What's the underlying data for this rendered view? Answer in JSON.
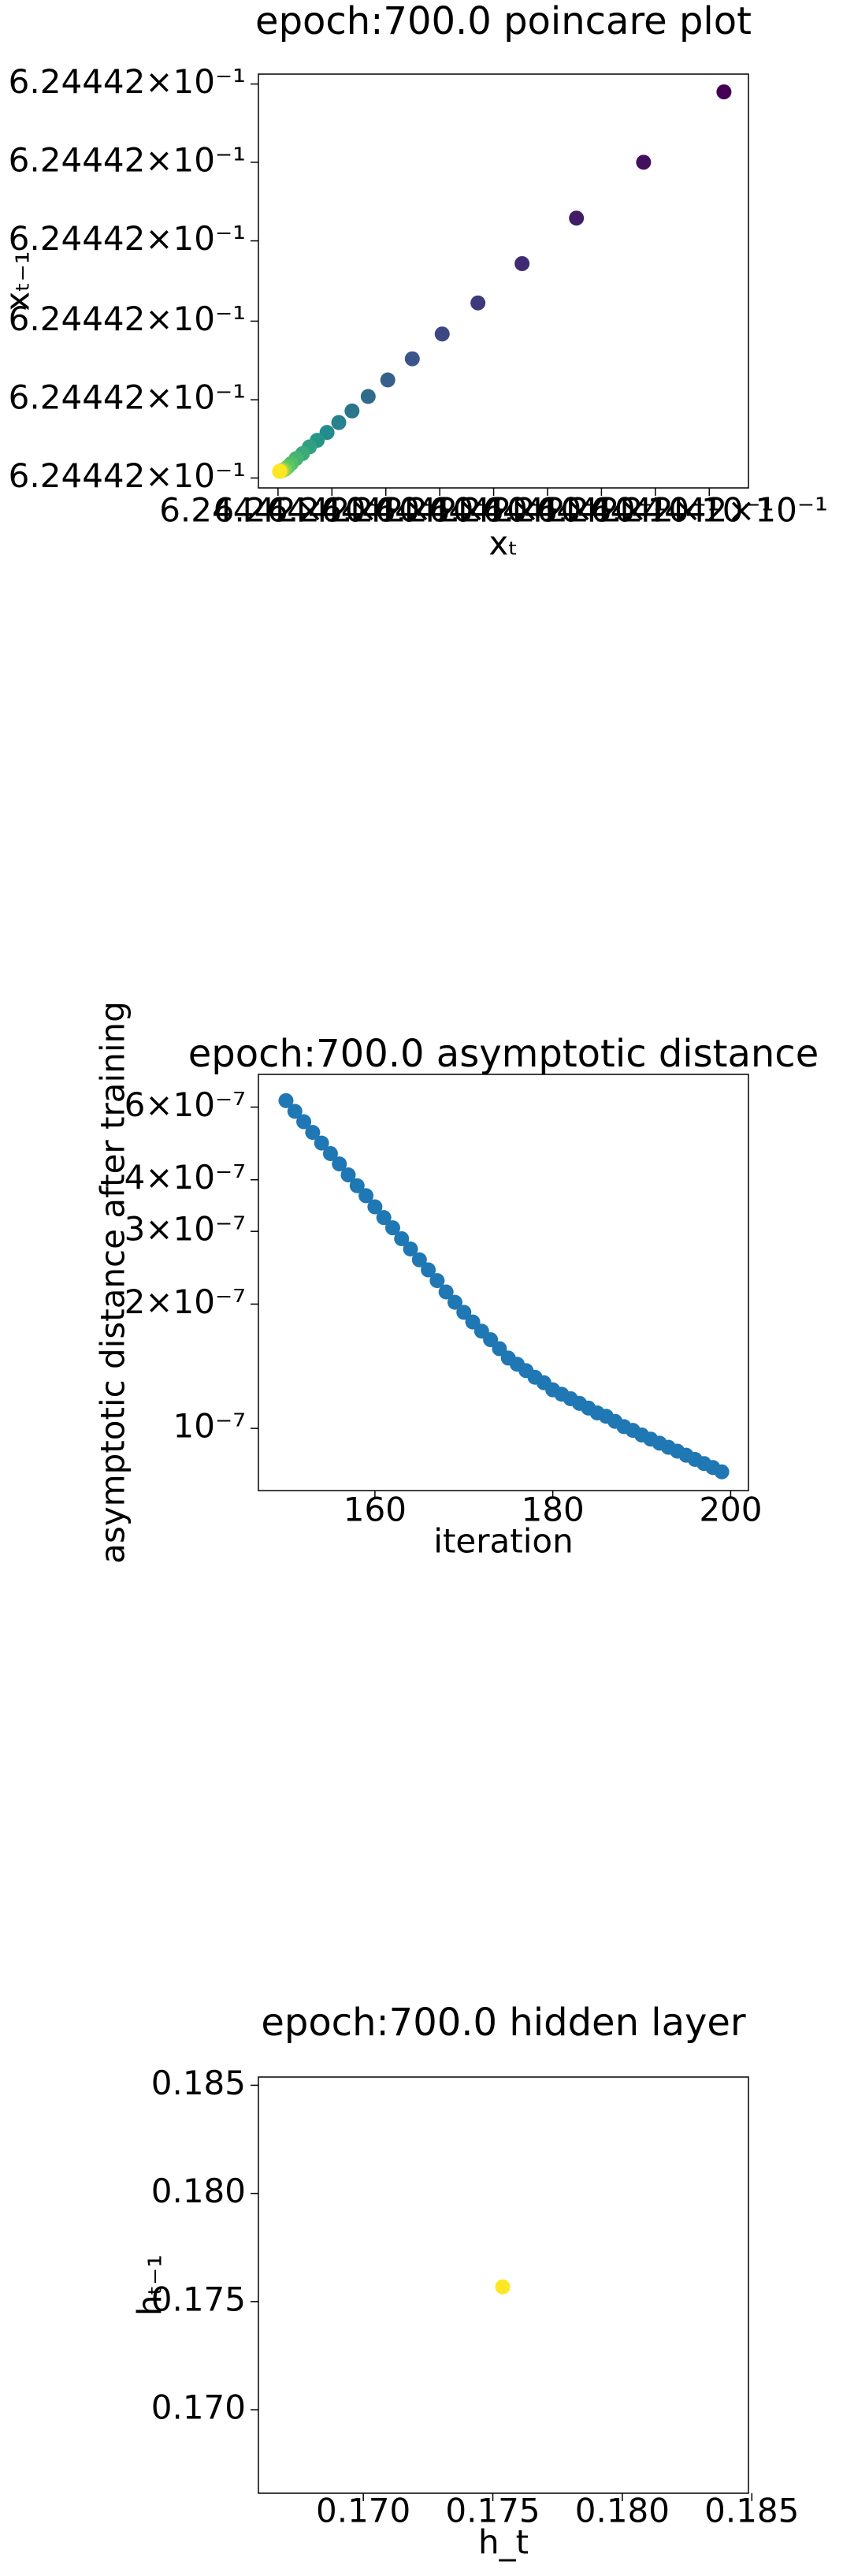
{
  "chart_data": [
    {
      "type": "scatter",
      "title": "epoch:700.0 poincare plot",
      "xlabel": "xₜ",
      "ylabel": "xₜ₋₁",
      "cmap": "viridis",
      "x": [
        0.624442095,
        0.6244420786,
        0.6244420649,
        0.6244420538,
        0.6244420448,
        0.6244420375,
        0.6244420314,
        0.6244420264,
        0.6244420224,
        0.6244420191,
        0.6244420164,
        0.624442014,
        0.624442012,
        0.6244420104,
        0.624442009,
        0.6244420077,
        0.6244420067,
        0.624442006,
        0.6244420054,
        0.624442005,
        0.6244420047,
        0.6244420045,
        0.6244420044,
        0.6244420043
      ],
      "values": [
        0.6244420957,
        0.6244420787,
        0.6244420652,
        0.6244420542,
        0.6244420447,
        0.6244420372,
        0.6244420312,
        0.6244420261,
        0.6244420221,
        0.6244420186,
        0.6244420158,
        0.6244420134,
        0.6244420115,
        0.6244420099,
        0.6244420083,
        0.6244420071,
        0.6244420059,
        0.6244420051,
        0.6244420045,
        0.6244420043,
        0.6244420042,
        0.6244420041,
        0.624442004,
        0.624442004
      ],
      "xlim": [
        0.624442,
        0.6244421
      ],
      "ylim": [
        0.624442,
        0.6244421
      ],
      "xticks": [
        {
          "value": 0.624442004,
          "label": "6.24442×10⁻¹"
        },
        {
          "value": 0.624442015,
          "label": "6.24442×10⁻¹"
        },
        {
          "value": 0.624442026,
          "label": "6.24442×10⁻¹"
        },
        {
          "value": 0.624442037,
          "label": "6.24442×10⁻¹"
        },
        {
          "value": 0.624442048,
          "label": "6.24442×10⁻¹"
        },
        {
          "value": 0.624442059,
          "label": "6.24442×10⁻¹"
        },
        {
          "value": 0.62444207,
          "label": "6.24442×10⁻¹"
        },
        {
          "value": 0.624442081,
          "label": "6.24442×10⁻¹"
        },
        {
          "value": 0.624442092,
          "label": "6.24442×10⁻¹"
        }
      ],
      "yticks": [
        {
          "value": 0.6244420024,
          "label": "6.24442×10⁻¹"
        },
        {
          "value": 0.6244420213,
          "label": "6.24442×10⁻¹"
        },
        {
          "value": 0.6244420403,
          "label": "6.24442×10⁻¹"
        },
        {
          "value": 0.6244420597,
          "label": "6.24442×10⁻¹"
        },
        {
          "value": 0.6244420787,
          "label": "6.24442×10⁻¹"
        },
        {
          "value": 0.6244420976,
          "label": "6.24442×10⁻¹"
        }
      ]
    },
    {
      "type": "scatter",
      "title": "epoch:700.0 asymptotic distance",
      "xlabel": "iteration",
      "ylabel": "asymptotic distance after training",
      "color": "#1f77b4",
      "ylog": true,
      "x": [
        150,
        151,
        152,
        153,
        154,
        155,
        156,
        157,
        158,
        159,
        160,
        161,
        162,
        163,
        164,
        165,
        166,
        167,
        168,
        169,
        170,
        171,
        172,
        173,
        174,
        175,
        176,
        177,
        178,
        179,
        180,
        181,
        182,
        183,
        184,
        185,
        186,
        187,
        188,
        189,
        190,
        191,
        192,
        193,
        194,
        195,
        196,
        197,
        198,
        199
      ],
      "values": [
        6.22e-07,
        5.86e-07,
        5.53e-07,
        5.21e-07,
        4.91e-07,
        4.63e-07,
        4.37e-07,
        4.11e-07,
        3.87e-07,
        3.66e-07,
        3.44e-07,
        3.24e-07,
        3.06e-07,
        2.88e-07,
        2.72e-07,
        2.56e-07,
        2.42e-07,
        2.28e-07,
        2.14e-07,
        2.02e-07,
        1.91e-07,
        1.81e-07,
        1.72e-07,
        1.64e-07,
        1.56e-07,
        1.48e-07,
        1.43e-07,
        1.38e-07,
        1.33e-07,
        1.29e-07,
        1.24e-07,
        1.21e-07,
        1.18e-07,
        1.15e-07,
        1.12e-07,
        1.09e-07,
        1.07e-07,
        1.04e-07,
        1.01e-07,
        9.89e-08,
        9.64e-08,
        9.42e-08,
        9.21e-08,
        9e-08,
        8.81e-08,
        8.61e-08,
        8.41e-08,
        8.22e-08,
        8.04e-08,
        7.85e-08
      ],
      "xlim": [
        146.9,
        202.0
      ],
      "ylim": [
        7.07e-08,
        7.2e-07
      ],
      "xticks": [
        160,
        180,
        200
      ],
      "yticks": [
        {
          "value": 1e-07,
          "label": "10⁻⁷"
        },
        {
          "value": 2e-07,
          "label": "2×10⁻⁷"
        },
        {
          "value": 3e-07,
          "label": "3×10⁻⁷"
        },
        {
          "value": 4e-07,
          "label": "4×10⁻⁷"
        },
        {
          "value": 6e-07,
          "label": "6×10⁻⁷"
        }
      ]
    },
    {
      "type": "scatter",
      "title": "epoch:700.0 hidden layer",
      "xlabel": "h_t",
      "ylabel": "hₜ₋₁",
      "color": "#fde725",
      "x": [
        0.17538
      ],
      "values": [
        0.17568
      ],
      "xlim": [
        0.16595,
        0.18487
      ],
      "ylim": [
        0.16614,
        0.18538
      ],
      "xticks": [
        {
          "value": 0.17,
          "label": "0.170"
        },
        {
          "value": 0.175,
          "label": "0.175"
        },
        {
          "value": 0.18,
          "label": "0.180"
        },
        {
          "value": 0.185,
          "label": "0.185"
        }
      ],
      "yticks": [
        {
          "value": 0.17,
          "label": "0.170"
        },
        {
          "value": 0.175,
          "label": "0.175"
        },
        {
          "value": 0.18,
          "label": "0.180"
        },
        {
          "value": 0.185,
          "label": "0.185"
        }
      ]
    }
  ]
}
